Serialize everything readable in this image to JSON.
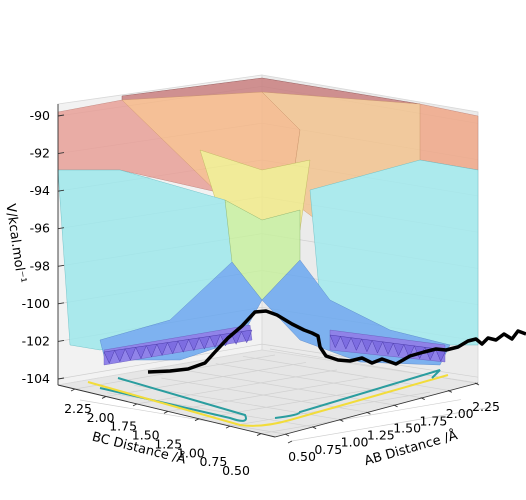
{
  "chart_data": {
    "type": "surface3d",
    "title": "",
    "zlabel": "V/kcal.mol⁻¹",
    "xlabel": "AB Distance /Å",
    "ylabel": "BC Distance /Å",
    "z_ticks": [
      "-90",
      "-92",
      "-94",
      "-96",
      "-98",
      "-100",
      "-102",
      "-104"
    ],
    "x_ticks": [
      "0.50",
      "0.75",
      "1.00",
      "1.25",
      "1.50",
      "1.75",
      "2.00",
      "2.25"
    ],
    "y_ticks": [
      "2.25",
      "2.00",
      "1.75",
      "1.50",
      "1.25",
      "1.00",
      "0.75",
      "0.50"
    ],
    "zlim": [
      -104,
      -90
    ],
    "xlim": [
      0.5,
      2.4
    ],
    "ylim": [
      0.5,
      2.4
    ],
    "colormap": "jet",
    "grid": true,
    "trajectory_color": "#000000",
    "contour_colors": [
      "#2a9d9f",
      "#f2dc3a"
    ]
  }
}
